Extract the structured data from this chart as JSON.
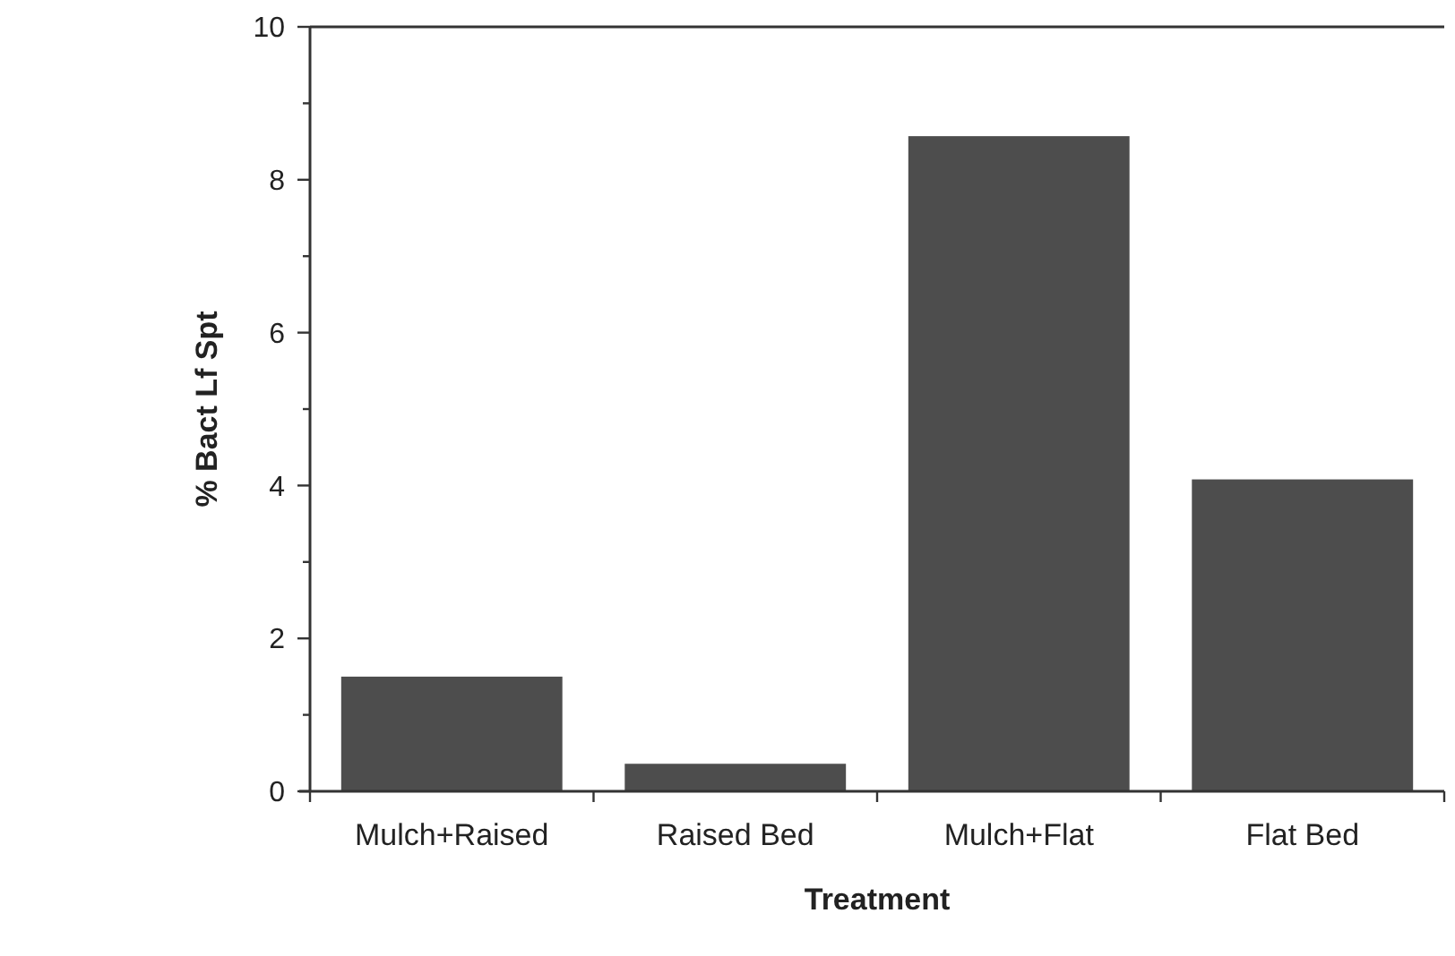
{
  "chart_data": {
    "type": "bar",
    "xlabel": "Treatment",
    "ylabel": "% Bact Lf Spt",
    "categories": [
      "Mulch+Raised",
      "Raised Bed",
      "Mulch+Flat",
      "Flat Bed"
    ],
    "values": [
      1.5,
      0.36,
      8.57,
      4.08
    ],
    "color": "#4d4d4d",
    "ylim": [
      0,
      10
    ],
    "yticks": [
      0,
      {
        "value": 1,
        "label": null
      },
      2,
      {
        "value": 3,
        "label": null
      },
      4,
      {
        "value": 5,
        "label": null
      },
      6,
      {
        "value": 7,
        "label": null
      },
      8,
      {
        "value": 9,
        "label": null
      },
      10
    ],
    "grid": false
  }
}
